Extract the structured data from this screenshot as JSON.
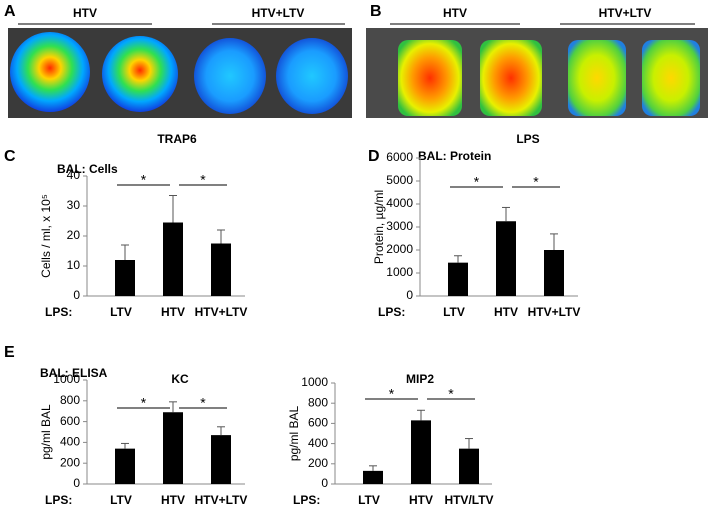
{
  "figure": {
    "panels": [
      {
        "letter": "A",
        "groups": [
          "HTV",
          "HTV+LTV"
        ],
        "caption": "TRAP6"
      },
      {
        "letter": "B",
        "groups": [
          "HTV",
          "HTV+LTV"
        ],
        "caption": "LPS"
      }
    ],
    "section_e": {
      "letter": "E",
      "title": "BAL: ELISA"
    }
  },
  "chart_data": [
    {
      "type": "bar",
      "panel": "C",
      "title": "BAL: Cells",
      "ylabel": "Cells / ml, x 10⁵",
      "category_prefix": "LPS:",
      "categories": [
        "LTV",
        "HTV",
        "HTV+LTV"
      ],
      "values": [
        12,
        24.5,
        17.5
      ],
      "errors": [
        5,
        9,
        4.5
      ],
      "color": "#000000",
      "ylim": [
        0,
        40
      ],
      "yticks": [
        0,
        10,
        20,
        30,
        40
      ],
      "annotations": [
        "*",
        "*"
      ]
    },
    {
      "type": "bar",
      "panel": "D",
      "title": "BAL: Protein",
      "ylabel": "Protein, µg/ml",
      "category_prefix": "LPS:",
      "categories": [
        "LTV",
        "HTV",
        "HTV+LTV"
      ],
      "values": [
        1450,
        3250,
        2000
      ],
      "errors": [
        300,
        600,
        700
      ],
      "color": "#000000",
      "ylim": [
        0,
        6000
      ],
      "yticks": [
        0,
        1000,
        2000,
        3000,
        4000,
        5000,
        6000
      ],
      "annotations": [
        "*",
        "*"
      ]
    },
    {
      "type": "bar",
      "title": "KC",
      "ylabel": "pg/ml BAL",
      "category_prefix": "LPS:",
      "categories": [
        "LTV",
        "HTV",
        "HTV+LTV"
      ],
      "values": [
        340,
        690,
        470
      ],
      "errors": [
        50,
        100,
        80
      ],
      "color": "#000000",
      "ylim": [
        0,
        1000
      ],
      "yticks": [
        0,
        200,
        400,
        600,
        800,
        1000
      ],
      "annotations": [
        "*",
        "*"
      ]
    },
    {
      "type": "bar",
      "title": "MIP2",
      "ylabel": "pg/ml BAL",
      "category_prefix": "LPS:",
      "categories": [
        "LTV",
        "HTV",
        "HTV/LTV"
      ],
      "values": [
        130,
        630,
        350
      ],
      "errors": [
        50,
        100,
        100
      ],
      "color": "#000000",
      "ylim": [
        0,
        1000
      ],
      "yticks": [
        0,
        200,
        400,
        600,
        800,
        1000
      ],
      "annotations": [
        "*",
        "*"
      ]
    }
  ]
}
